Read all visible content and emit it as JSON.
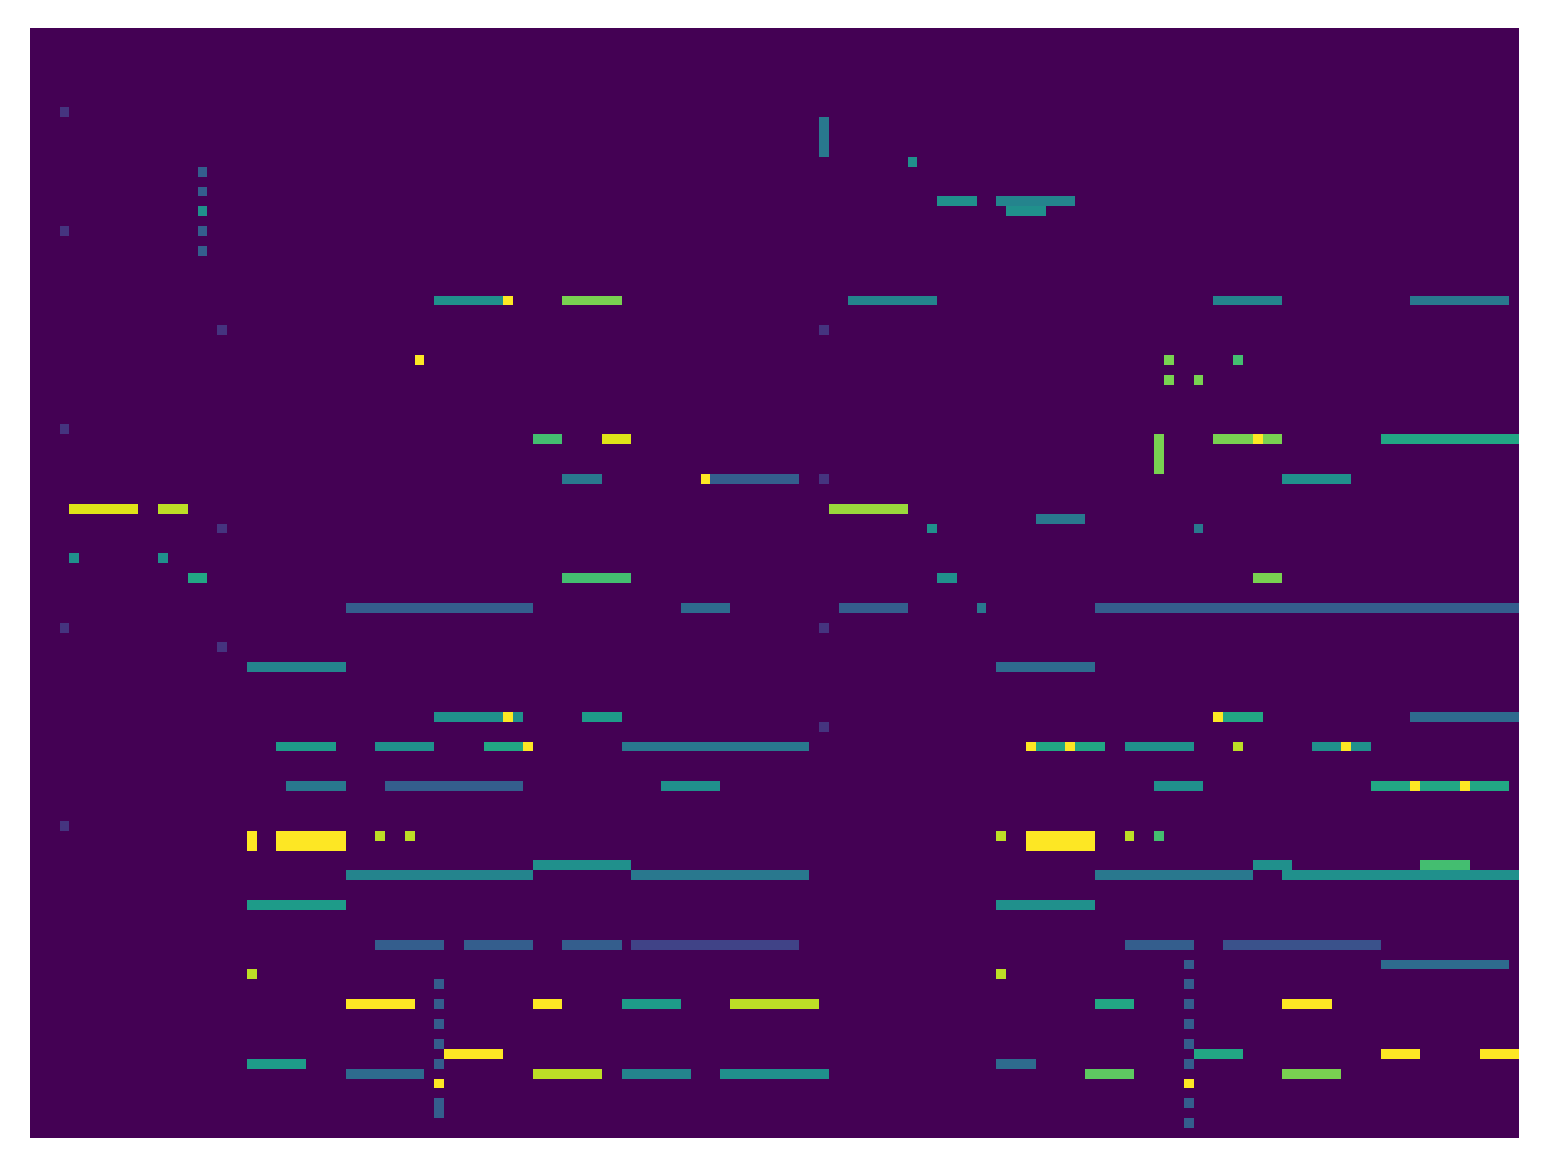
{
  "chart_data": {
    "type": "heatmap",
    "color": "viridis",
    "tick_labels": false,
    "color_range": [
      0,
      1
    ],
    "cells": {
      "rows": 112,
      "cols": 151,
      "runs": [
        [
          8,
          3,
          3,
          0.15
        ],
        [
          20,
          3,
          3,
          0.15
        ],
        [
          40,
          3,
          3,
          0.15
        ],
        [
          60,
          3,
          3,
          0.15
        ],
        [
          80,
          3,
          3,
          0.15
        ],
        [
          14,
          17,
          17,
          0.3
        ],
        [
          16,
          17,
          17,
          0.3
        ],
        [
          20,
          17,
          17,
          0.3
        ],
        [
          22,
          17,
          17,
          0.3
        ],
        [
          30,
          19,
          19,
          0.15
        ],
        [
          50,
          19,
          19,
          0.15
        ],
        [
          62,
          19,
          19,
          0.15
        ],
        [
          9,
          80,
          80,
          0.4
        ],
        [
          10,
          80,
          80,
          0.4
        ],
        [
          11,
          80,
          80,
          0.4
        ],
        [
          12,
          80,
          80,
          0.4
        ],
        [
          30,
          80,
          80,
          0.15
        ],
        [
          45,
          80,
          80,
          0.15
        ],
        [
          60,
          80,
          80,
          0.15
        ],
        [
          70,
          80,
          80,
          0.15
        ],
        [
          96,
          41,
          41,
          0.3
        ],
        [
          98,
          41,
          41,
          0.3
        ],
        [
          100,
          41,
          41,
          0.3
        ],
        [
          102,
          41,
          41,
          0.3
        ],
        [
          104,
          41,
          41,
          0.3
        ],
        [
          108,
          41,
          41,
          0.3
        ],
        [
          109,
          41,
          41,
          0.3
        ],
        [
          94,
          117,
          117,
          0.3
        ],
        [
          96,
          117,
          117,
          0.3
        ],
        [
          98,
          117,
          117,
          0.3
        ],
        [
          100,
          117,
          117,
          0.3
        ],
        [
          102,
          117,
          117,
          0.3
        ],
        [
          104,
          117,
          117,
          0.3
        ],
        [
          108,
          117,
          117,
          0.3
        ],
        [
          110,
          117,
          117,
          0.3
        ],
        [
          13,
          89,
          89,
          0.5
        ],
        [
          17,
          92,
          95,
          0.5
        ],
        [
          17,
          98,
          105,
          0.45
        ],
        [
          18,
          99,
          102,
          0.5
        ],
        [
          18,
          17,
          17,
          0.5
        ],
        [
          27,
          41,
          47,
          0.5
        ],
        [
          27,
          48,
          48,
          1.0
        ],
        [
          27,
          54,
          59,
          0.8
        ],
        [
          27,
          83,
          91,
          0.45
        ],
        [
          27,
          120,
          126,
          0.45
        ],
        [
          27,
          140,
          149,
          0.4
        ],
        [
          33,
          39,
          39,
          1.0
        ],
        [
          33,
          115,
          115,
          0.8
        ],
        [
          33,
          122,
          122,
          0.7
        ],
        [
          35,
          115,
          115,
          0.8
        ],
        [
          35,
          118,
          118,
          0.8
        ],
        [
          41,
          51,
          53,
          0.7
        ],
        [
          41,
          58,
          60,
          0.95
        ],
        [
          41,
          114,
          114,
          0.8
        ],
        [
          42,
          114,
          114,
          0.8
        ],
        [
          43,
          114,
          114,
          0.8
        ],
        [
          44,
          114,
          114,
          0.8
        ],
        [
          41,
          120,
          126,
          0.8
        ],
        [
          41,
          124,
          124,
          1.0
        ],
        [
          41,
          137,
          150,
          0.6
        ],
        [
          45,
          68,
          68,
          1.0
        ],
        [
          45,
          69,
          77,
          0.3
        ],
        [
          45,
          54,
          57,
          0.4
        ],
        [
          45,
          127,
          133,
          0.5
        ],
        [
          48,
          4,
          10,
          0.95
        ],
        [
          48,
          13,
          15,
          0.9
        ],
        [
          48,
          81,
          88,
          0.85
        ],
        [
          49,
          102,
          106,
          0.4
        ],
        [
          50,
          91,
          91,
          0.5
        ],
        [
          50,
          118,
          118,
          0.4
        ],
        [
          53,
          4,
          4,
          0.5
        ],
        [
          53,
          13,
          13,
          0.5
        ],
        [
          55,
          16,
          17,
          0.6
        ],
        [
          55,
          54,
          60,
          0.7
        ],
        [
          55,
          92,
          93,
          0.5
        ],
        [
          55,
          124,
          126,
          0.8
        ],
        [
          58,
          32,
          50,
          0.3
        ],
        [
          58,
          66,
          70,
          0.35
        ],
        [
          58,
          82,
          88,
          0.3
        ],
        [
          58,
          96,
          96,
          0.4
        ],
        [
          58,
          108,
          150,
          0.3
        ],
        [
          64,
          22,
          31,
          0.45
        ],
        [
          64,
          98,
          107,
          0.35
        ],
        [
          69,
          41,
          49,
          0.5
        ],
        [
          69,
          48,
          48,
          1.0
        ],
        [
          69,
          56,
          59,
          0.55
        ],
        [
          69,
          120,
          124,
          0.6
        ],
        [
          69,
          120,
          120,
          1.0
        ],
        [
          69,
          140,
          150,
          0.35
        ],
        [
          72,
          25,
          30,
          0.55
        ],
        [
          72,
          35,
          40,
          0.5
        ],
        [
          72,
          46,
          50,
          0.6
        ],
        [
          72,
          50,
          50,
          1.0
        ],
        [
          72,
          60,
          78,
          0.4
        ],
        [
          72,
          101,
          108,
          0.6
        ],
        [
          72,
          101,
          101,
          1.0
        ],
        [
          72,
          105,
          105,
          1.0
        ],
        [
          72,
          111,
          117,
          0.5
        ],
        [
          72,
          122,
          122,
          0.9
        ],
        [
          72,
          130,
          135,
          0.5
        ],
        [
          72,
          133,
          133,
          1.0
        ],
        [
          76,
          26,
          31,
          0.4
        ],
        [
          76,
          36,
          49,
          0.3
        ],
        [
          76,
          64,
          69,
          0.5
        ],
        [
          76,
          114,
          118,
          0.5
        ],
        [
          76,
          136,
          149,
          0.6
        ],
        [
          76,
          140,
          140,
          1.0
        ],
        [
          76,
          145,
          145,
          1.0
        ],
        [
          81,
          22,
          22,
          1.0
        ],
        [
          82,
          22,
          22,
          1.0
        ],
        [
          81,
          25,
          31,
          1.0
        ],
        [
          82,
          25,
          31,
          1.0
        ],
        [
          81,
          35,
          35,
          0.9
        ],
        [
          81,
          38,
          38,
          0.9
        ],
        [
          81,
          98,
          98,
          0.9
        ],
        [
          81,
          101,
          107,
          1.0
        ],
        [
          82,
          101,
          107,
          1.0
        ],
        [
          81,
          111,
          111,
          0.9
        ],
        [
          81,
          114,
          114,
          0.7
        ],
        [
          84,
          51,
          60,
          0.5
        ],
        [
          84,
          124,
          127,
          0.5
        ],
        [
          84,
          141,
          145,
          0.7
        ],
        [
          85,
          32,
          50,
          0.45
        ],
        [
          85,
          61,
          78,
          0.4
        ],
        [
          85,
          108,
          123,
          0.4
        ],
        [
          85,
          127,
          150,
          0.5
        ],
        [
          88,
          22,
          31,
          0.55
        ],
        [
          88,
          98,
          107,
          0.5
        ],
        [
          92,
          35,
          41,
          0.3
        ],
        [
          92,
          44,
          50,
          0.3
        ],
        [
          92,
          54,
          59,
          0.3
        ],
        [
          92,
          61,
          77,
          0.2
        ],
        [
          92,
          111,
          117,
          0.3
        ],
        [
          92,
          121,
          136,
          0.25
        ],
        [
          94,
          137,
          149,
          0.35
        ],
        [
          95,
          22,
          22,
          0.9
        ],
        [
          95,
          98,
          98,
          0.9
        ],
        [
          98,
          32,
          38,
          1.0
        ],
        [
          98,
          51,
          53,
          1.0
        ],
        [
          98,
          60,
          65,
          0.55
        ],
        [
          98,
          71,
          79,
          0.9
        ],
        [
          98,
          108,
          111,
          0.6
        ],
        [
          98,
          127,
          131,
          1.0
        ],
        [
          103,
          42,
          47,
          1.0
        ],
        [
          103,
          118,
          122,
          0.6
        ],
        [
          103,
          137,
          140,
          1.0
        ],
        [
          103,
          147,
          150,
          1.0
        ],
        [
          104,
          22,
          27,
          0.55
        ],
        [
          104,
          98,
          101,
          0.35
        ],
        [
          105,
          32,
          39,
          0.35
        ],
        [
          105,
          51,
          57,
          0.9
        ],
        [
          105,
          60,
          66,
          0.45
        ],
        [
          105,
          70,
          80,
          0.5
        ],
        [
          105,
          107,
          111,
          0.75
        ],
        [
          105,
          127,
          132,
          0.8
        ],
        [
          106,
          41,
          41,
          1.0
        ],
        [
          106,
          117,
          117,
          1.0
        ]
      ]
    }
  }
}
